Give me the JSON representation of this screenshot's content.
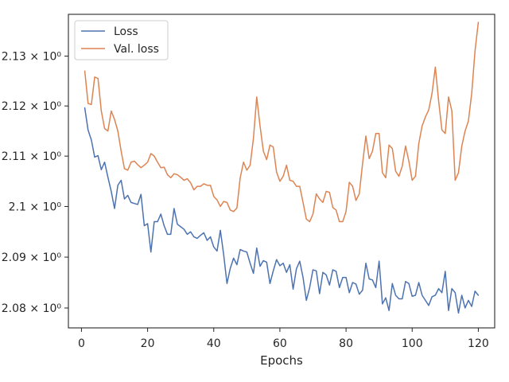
{
  "chart_data": {
    "type": "line",
    "title": "",
    "xlabel": "Epochs",
    "ylabel": "",
    "xlim": [
      -3.95,
      124.95
    ],
    "ylim": [
      2.0761,
      2.1384
    ],
    "y_scale": "log",
    "grid": false,
    "legend_position": "top-left",
    "x_ticks": [
      0,
      20,
      40,
      60,
      80,
      100,
      120
    ],
    "x_tick_labels": [
      "0",
      "20",
      "40",
      "60",
      "80",
      "100",
      "120"
    ],
    "y_ticks": [
      2.08,
      2.09,
      2.1,
      2.11,
      2.12,
      2.13
    ],
    "y_tick_labels": [
      "2.08 × 10⁰",
      "2.09 × 10⁰",
      "2.1 × 10⁰",
      "2.11 × 10⁰",
      "2.12 × 10⁰",
      "2.13 × 10⁰"
    ],
    "x": [
      1,
      2,
      3,
      4,
      5,
      6,
      7,
      8,
      9,
      10,
      11,
      12,
      13,
      14,
      15,
      16,
      17,
      18,
      19,
      20,
      21,
      22,
      23,
      24,
      25,
      26,
      27,
      28,
      29,
      30,
      31,
      32,
      33,
      34,
      35,
      36,
      37,
      38,
      39,
      40,
      41,
      42,
      43,
      44,
      45,
      46,
      47,
      48,
      49,
      50,
      51,
      52,
      53,
      54,
      55,
      56,
      57,
      58,
      59,
      60,
      61,
      62,
      63,
      64,
      65,
      66,
      67,
      68,
      69,
      70,
      71,
      72,
      73,
      74,
      75,
      76,
      77,
      78,
      79,
      80,
      81,
      82,
      83,
      84,
      85,
      86,
      87,
      88,
      89,
      90,
      91,
      92,
      93,
      94,
      95,
      96,
      97,
      98,
      99,
      100,
      101,
      102,
      103,
      104,
      105,
      106,
      107,
      108,
      109,
      110,
      111,
      112,
      113,
      114,
      115,
      116,
      117,
      118,
      119,
      120
    ],
    "series": [
      {
        "name": "Loss",
        "color": "#4c72b0",
        "values": [
          2.1196,
          2.1152,
          2.1132,
          2.1098,
          2.1101,
          2.1073,
          2.1088,
          2.1058,
          2.103,
          2.0996,
          2.1042,
          2.1052,
          2.1015,
          2.1022,
          2.1008,
          2.1006,
          2.1004,
          2.1024,
          2.0962,
          2.0966,
          2.091,
          2.097,
          2.097,
          2.0985,
          2.0962,
          2.0945,
          2.0945,
          2.0996,
          2.0965,
          2.096,
          2.0955,
          2.0945,
          2.095,
          2.094,
          2.0937,
          2.0943,
          2.0948,
          2.0933,
          2.094,
          2.092,
          2.0912,
          2.0953,
          2.0905,
          2.0848,
          2.0878,
          2.0898,
          2.0885,
          2.0915,
          2.0912,
          2.091,
          2.0888,
          2.0868,
          2.0918,
          2.0882,
          2.0893,
          2.089,
          2.0848,
          2.0873,
          2.0895,
          2.0883,
          2.0888,
          2.087,
          2.0885,
          2.0837,
          2.0877,
          2.0892,
          2.086,
          2.0815,
          2.084,
          2.0875,
          2.0873,
          2.0828,
          2.087,
          2.0865,
          2.0845,
          2.0875,
          2.0872,
          2.084,
          2.086,
          2.086,
          2.083,
          2.085,
          2.0847,
          2.0827,
          2.0835,
          2.0888,
          2.0857,
          2.0855,
          2.084,
          2.0892,
          2.0808,
          2.082,
          2.0795,
          2.0848,
          2.0825,
          2.0818,
          2.0818,
          2.0852,
          2.0848,
          2.0823,
          2.0825,
          2.085,
          2.0825,
          2.0815,
          2.0805,
          2.0822,
          2.0825,
          2.0838,
          2.083,
          2.0872,
          2.0795,
          2.0838,
          2.083,
          2.079,
          2.0825,
          2.08,
          2.0815,
          2.0803,
          2.0833,
          2.0825
        ]
      },
      {
        "name": "Val. loss",
        "color": "#dd8452",
        "values": [
          2.127,
          2.1205,
          2.1203,
          2.1258,
          2.1255,
          2.119,
          2.1155,
          2.115,
          2.119,
          2.1173,
          2.115,
          2.111,
          2.1075,
          2.1072,
          2.1088,
          2.109,
          2.1083,
          2.1077,
          2.1082,
          2.1088,
          2.1105,
          2.11,
          2.1088,
          2.1077,
          2.1078,
          2.1063,
          2.1057,
          2.1065,
          2.1063,
          2.1058,
          2.1052,
          2.1055,
          2.1047,
          2.1033,
          2.104,
          2.104,
          2.1045,
          2.1042,
          2.1042,
          2.102,
          2.1013,
          2.1,
          2.101,
          2.1008,
          2.0993,
          2.099,
          2.0997,
          2.1057,
          2.1088,
          2.1072,
          2.1082,
          2.1135,
          2.1218,
          2.116,
          2.111,
          2.1093,
          2.1122,
          2.1118,
          2.1068,
          2.105,
          2.106,
          2.1082,
          2.1052,
          2.105,
          2.104,
          2.104,
          2.1008,
          2.0975,
          2.097,
          2.0985,
          2.1025,
          2.1015,
          2.1008,
          2.103,
          2.1028,
          2.0998,
          2.0993,
          2.097,
          2.097,
          2.099,
          2.1048,
          2.104,
          2.1012,
          2.1025,
          2.1085,
          2.114,
          2.1095,
          2.111,
          2.1145,
          2.1145,
          2.1067,
          2.1057,
          2.1122,
          2.1115,
          2.107,
          2.106,
          2.108,
          2.112,
          2.109,
          2.1052,
          2.106,
          2.1125,
          2.116,
          2.1178,
          2.1192,
          2.1225,
          2.1278,
          2.121,
          2.1152,
          2.1145,
          2.1218,
          2.119,
          2.1052,
          2.1067,
          2.112,
          2.115,
          2.117,
          2.1225,
          2.131,
          2.1368
        ]
      }
    ]
  }
}
